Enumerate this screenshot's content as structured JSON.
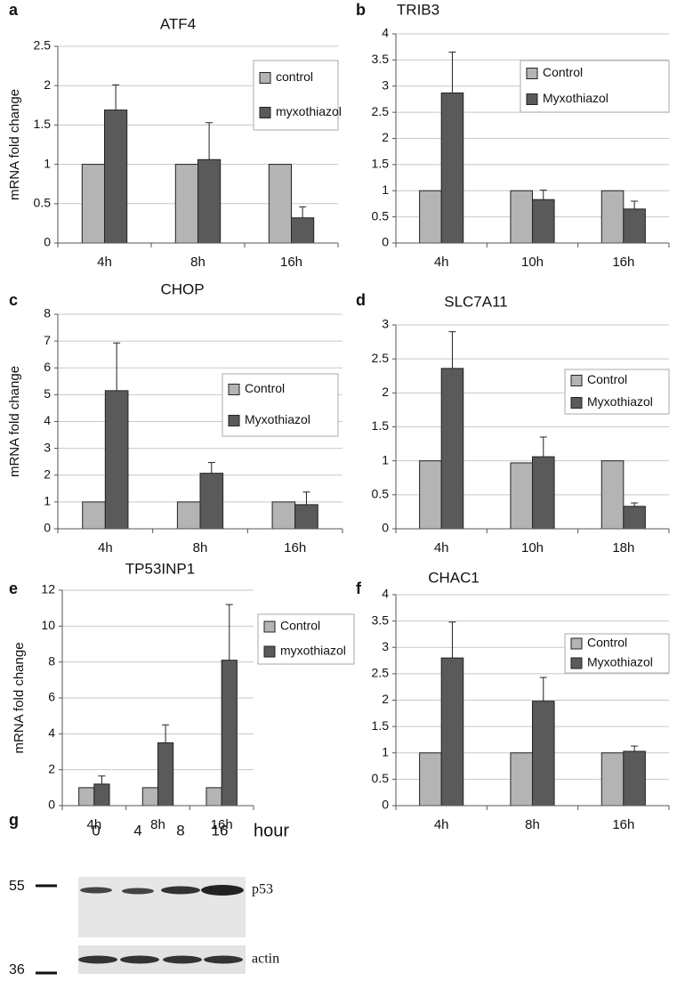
{
  "chart_data": [
    {
      "type": "bar",
      "panel": "a",
      "title": "ATF4",
      "y_label": "mRNA  fold change",
      "categories": [
        "4h",
        "8h",
        "16h"
      ],
      "series": [
        {
          "name": "control",
          "color": "#b4b4b4",
          "values": [
            1,
            1,
            1
          ]
        },
        {
          "name": "myxothiazol",
          "color": "#5a5a5a",
          "values": [
            1.69,
            1.06,
            0.32
          ],
          "errors": [
            0.32,
            0.47,
            0.14
          ]
        }
      ],
      "ylim": [
        0,
        2.5
      ],
      "yticks": [
        0,
        0.5,
        1,
        1.5,
        2,
        2.5
      ],
      "grid": true
    },
    {
      "type": "bar",
      "panel": "b",
      "title": "TRIB3",
      "categories": [
        "4h",
        "10h",
        "16h"
      ],
      "series": [
        {
          "name": "Control",
          "color": "#b4b4b4",
          "values": [
            1,
            1,
            1
          ]
        },
        {
          "name": "Myxothiazol",
          "color": "#5a5a5a",
          "values": [
            2.87,
            0.83,
            0.65
          ],
          "errors": [
            0.78,
            0.18,
            0.15
          ]
        }
      ],
      "ylim": [
        0,
        4
      ],
      "yticks": [
        0,
        0.5,
        1,
        1.5,
        2,
        2.5,
        3,
        3.5,
        4
      ],
      "grid": true
    },
    {
      "type": "bar",
      "panel": "c",
      "title": "CHOP",
      "y_label": "mRNA  fold change",
      "categories": [
        "4h",
        "8h",
        "16h"
      ],
      "series": [
        {
          "name": "Control",
          "color": "#b4b4b4",
          "values": [
            1,
            1,
            1
          ]
        },
        {
          "name": "Myxothiazol",
          "color": "#5a5a5a",
          "values": [
            5.15,
            2.07,
            0.9
          ],
          "errors": [
            1.78,
            0.4,
            0.47
          ]
        }
      ],
      "ylim": [
        0,
        8
      ],
      "yticks": [
        0,
        1,
        2,
        3,
        4,
        5,
        6,
        7,
        8
      ],
      "grid": true
    },
    {
      "type": "bar",
      "panel": "d",
      "title": "SLC7A11",
      "categories": [
        "4h",
        "10h",
        "18h"
      ],
      "series": [
        {
          "name": "Control",
          "color": "#b4b4b4",
          "values": [
            1,
            0.97,
            1
          ]
        },
        {
          "name": "Myxothiazol",
          "color": "#5a5a5a",
          "values": [
            2.36,
            1.06,
            0.33
          ],
          "errors": [
            0.54,
            0.29,
            0.05
          ]
        }
      ],
      "ylim": [
        0,
        3
      ],
      "yticks": [
        0,
        0.5,
        1,
        1.5,
        2,
        2.5,
        3
      ],
      "grid": true
    },
    {
      "type": "bar",
      "panel": "e",
      "title": "TP53INP1",
      "y_label": "mRNA  fold change",
      "categories": [
        "4h",
        "8h",
        "16h"
      ],
      "series": [
        {
          "name": "Control",
          "color": "#b4b4b4",
          "values": [
            1,
            1,
            1
          ]
        },
        {
          "name": "myxothiazol",
          "color": "#5a5a5a",
          "values": [
            1.2,
            3.5,
            8.1
          ],
          "errors": [
            0.45,
            1.0,
            3.1
          ]
        }
      ],
      "ylim": [
        0,
        12
      ],
      "yticks": [
        0,
        2,
        4,
        6,
        8,
        10,
        12
      ],
      "grid": true
    },
    {
      "type": "bar",
      "panel": "f",
      "title": "CHAC1",
      "categories": [
        "4h",
        "8h",
        "16h"
      ],
      "series": [
        {
          "name": "Control",
          "color": "#b4b4b4",
          "values": [
            1,
            1,
            1
          ]
        },
        {
          "name": "Myxothiazol",
          "color": "#5a5a5a",
          "values": [
            2.8,
            1.98,
            1.03
          ],
          "errors": [
            0.68,
            0.45,
            0.1
          ]
        }
      ],
      "ylim": [
        0,
        4
      ],
      "yticks": [
        0,
        0.5,
        1,
        1.5,
        2,
        2.5,
        3,
        3.5,
        4
      ],
      "grid": true
    }
  ],
  "blot": {
    "panel": "g",
    "lanes": [
      "0",
      "4",
      "8",
      "16"
    ],
    "unit": "hour",
    "markers": [
      "55",
      "36"
    ],
    "rows": [
      "p53",
      "actin"
    ]
  }
}
